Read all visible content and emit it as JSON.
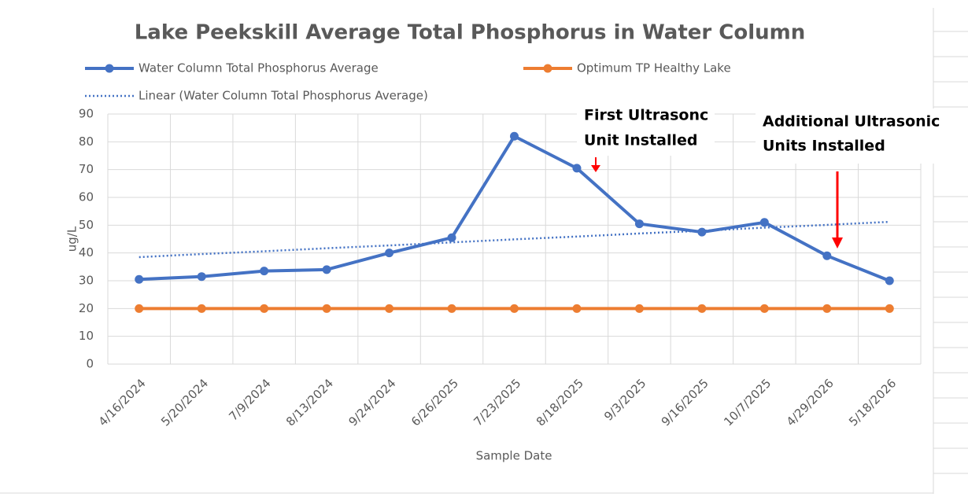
{
  "chart_data": {
    "type": "line",
    "title": "Lake Peekskill Average Total Phosphorus in Water Column",
    "x_label": "Sample Date",
    "y_label": "ug/L",
    "categories": [
      "4/16/2024",
      "5/20/2024",
      "7/9/2024",
      "8/13/2024",
      "9/24/2024",
      "6/26/2025",
      "7/23/2025",
      "8/18/2025",
      "9/3/2025",
      "9/16/2025",
      "10/7/2025",
      "4/29/2026",
      "5/18/2026"
    ],
    "series": [
      {
        "name": "Water Column Total Phosphorus Average",
        "color": "#4472c4",
        "marker": true,
        "values": [
          30.5,
          31.5,
          33.5,
          34,
          40,
          45.5,
          82,
          70.5,
          50.5,
          47.5,
          51,
          39,
          30
        ]
      },
      {
        "name": "Optimum  TP Healthy Lake",
        "color": "#ed7d31",
        "marker": true,
        "values": [
          20,
          20,
          20,
          20,
          20,
          20,
          20,
          20,
          20,
          20,
          20,
          20,
          20
        ]
      },
      {
        "name": "Linear (Water Column Total Phosphorus Average)",
        "color": "#4472c4",
        "marker": false,
        "dotted": true,
        "values": [
          38.5,
          39.6,
          40.6,
          41.7,
          42.7,
          43.8,
          44.9,
          45.9,
          47.0,
          48.0,
          49.1,
          50.1,
          51.2
        ]
      }
    ],
    "ylim": [
      0,
      90
    ],
    "yticks": [
      0,
      10,
      20,
      30,
      40,
      50,
      60,
      70,
      80,
      90
    ],
    "grid": true,
    "annotations": [
      {
        "lines": [
          "First Ultrasonc",
          "Unit Installed"
        ]
      },
      {
        "lines": [
          "Additional  Ultrasonic",
          "Units Installed"
        ]
      }
    ]
  }
}
